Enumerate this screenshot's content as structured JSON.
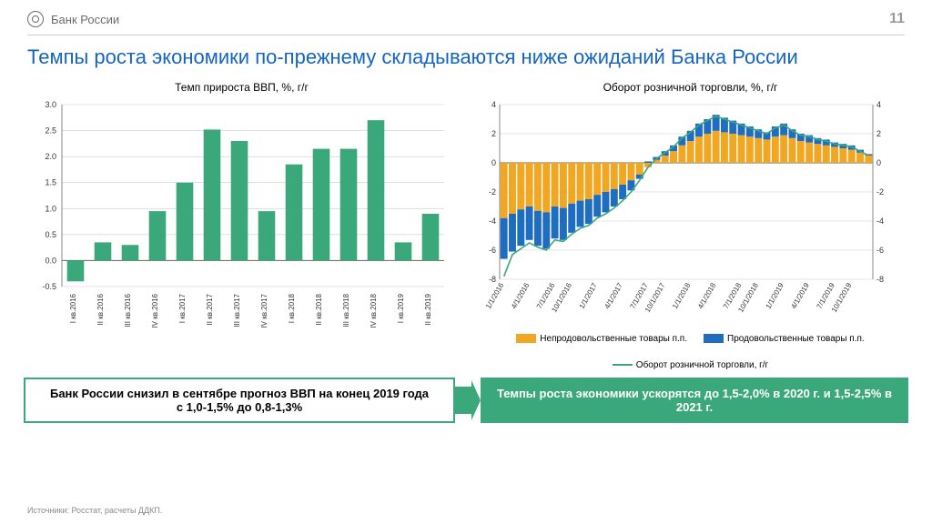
{
  "header": {
    "brand": "Банк России",
    "page_number": "11"
  },
  "title": "Темпы роста экономики по-прежнему складываются ниже ожиданий Банка России",
  "left_chart": {
    "type": "bar",
    "title": "Темп прироста ВВП, %, г/г",
    "categories": [
      "I кв.2016",
      "II кв.2016",
      "III кв.2016",
      "IV кв.2016",
      "I кв.2017",
      "II кв.2017",
      "III кв.2017",
      "IV кв.2017",
      "I кв.2018",
      "II кв.2018",
      "III кв.2018",
      "IV кв.2018",
      "I кв.2019",
      "II кв.2019"
    ],
    "values": [
      -0.4,
      0.35,
      0.3,
      0.95,
      1.5,
      2.52,
      2.3,
      0.95,
      1.85,
      2.15,
      2.15,
      2.7,
      0.35,
      0.9
    ],
    "bar_color": "#3aa87a",
    "ylim": [
      -0.5,
      3.0
    ],
    "ytick_step": 0.5,
    "grid_color": "#cccccc",
    "label_fontsize": 9,
    "x_label_fontsize": 8,
    "bar_width": 0.62
  },
  "right_chart": {
    "type": "stacked-bar-with-line",
    "title": "Оборот розничной торговли, %, г/г",
    "x_labels": [
      "1/1/2016",
      "4/1/2016",
      "7/1/2016",
      "10/1/2016",
      "1/1/2017",
      "4/1/2017",
      "7/1/2017",
      "10/1/2017",
      "1/1/2018",
      "4/1/2018",
      "7/1/2018",
      "10/1/2018",
      "1/1/2019",
      "4/1/2019",
      "7/1/2019",
      "10/1/2019"
    ],
    "n_bars": 44,
    "nonfood": [
      -3.8,
      -3.5,
      -3.2,
      -3.0,
      -3.3,
      -3.4,
      -3.0,
      -3.1,
      -2.8,
      -2.6,
      -2.5,
      -2.2,
      -2.0,
      -1.8,
      -1.5,
      -1.2,
      -0.8,
      -0.3,
      0.2,
      0.5,
      0.8,
      1.2,
      1.5,
      1.8,
      2.0,
      2.2,
      2.1,
      2.0,
      1.9,
      1.8,
      1.7,
      1.6,
      1.8,
      1.9,
      1.7,
      1.5,
      1.4,
      1.3,
      1.2,
      1.1,
      1.0,
      0.9,
      0.7,
      0.5
    ],
    "food": [
      -2.8,
      -2.6,
      -2.5,
      -2.3,
      -2.4,
      -2.5,
      -2.2,
      -2.2,
      -2.0,
      -1.8,
      -1.7,
      -1.5,
      -1.4,
      -1.2,
      -1.0,
      -0.7,
      -0.3,
      0.1,
      0.2,
      0.3,
      0.4,
      0.6,
      0.7,
      0.9,
      1.0,
      1.1,
      1.0,
      0.9,
      0.8,
      0.7,
      0.6,
      0.5,
      0.7,
      0.8,
      0.6,
      0.5,
      0.5,
      0.4,
      0.4,
      0.3,
      0.3,
      0.3,
      0.2,
      0.1
    ],
    "line": [
      -7.8,
      -6.3,
      -5.9,
      -5.5,
      -5.8,
      -6.0,
      -5.3,
      -5.4,
      -4.9,
      -4.5,
      -4.3,
      -3.8,
      -3.5,
      -3.1,
      -2.6,
      -2.0,
      -1.2,
      -0.3,
      0.3,
      0.7,
      1.1,
      1.7,
      2.1,
      2.6,
      2.9,
      3.2,
      3.0,
      2.8,
      2.6,
      2.4,
      2.2,
      2.0,
      2.4,
      2.6,
      2.2,
      1.9,
      1.8,
      1.6,
      1.5,
      1.3,
      1.2,
      1.1,
      0.8,
      0.5
    ],
    "nonfood_color": "#f2a722",
    "food_color": "#1f6dc1",
    "line_color": "#3aa87a",
    "ylim": [
      -8,
      4
    ],
    "ytick_step": 2,
    "grid_color": "#cccccc",
    "label_fontsize": 9,
    "legend": {
      "nonfood": "Непродовольственные товары п.п.",
      "food": "Продовольственные товары п.п.",
      "line": "Оборот розничной торговли, г/г"
    }
  },
  "callouts": {
    "left": "Банк России снизил в сентябре прогноз ВВП на конец 2019 года\nс 1,0-1,5% до 0,8-1,3%",
    "right": "Темпы роста экономики ускорятся до 1,5-2,0% в 2020 г. и 1,5-2,5% в 2021 г.",
    "border_color": "#3aa87a",
    "right_bg": "#3aa87a"
  },
  "sources": "Источники: Росстат, расчеты ДДКП."
}
